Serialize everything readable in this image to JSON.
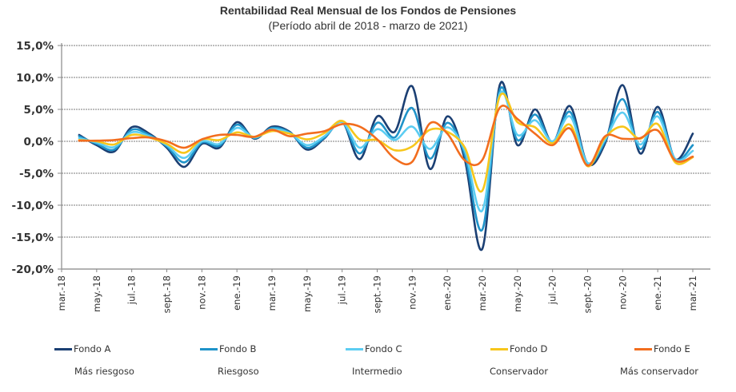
{
  "chart_data": {
    "type": "line",
    "title": "Rentabilidad Real Mensual de los Fondos de Pensiones",
    "subtitle": "(Período  abril de 2018 -  marzo de 2021)",
    "xlabel": "",
    "ylabel": "",
    "ylim": [
      -20,
      15
    ],
    "yticks": [
      15,
      10,
      5,
      0,
      -5,
      -10,
      -15,
      -20
    ],
    "ytick_labels": [
      "15,0%",
      "10,0%",
      "5,0%",
      "0,0%",
      "-5,0%",
      "-10,0%",
      "-15,0%",
      "-20,0%"
    ],
    "grid": true,
    "legend_position": "bottom",
    "xtick_labels": [
      "mar.-18",
      "may.-18",
      "jul.-18",
      "sept.-18",
      "nov.-18",
      "ene.-19",
      "mar.-19",
      "may.-19",
      "jul.-19",
      "sept.-19",
      "nov.-19",
      "ene.-20",
      "mar.-20",
      "may.-20",
      "jul.-20",
      "sept.-20",
      "nov.-20",
      "ene.-21",
      "mar.-21"
    ],
    "x_start_month_index": 1,
    "x_months_total": 36,
    "series": [
      {
        "name": "Fondo A",
        "description": "Más riesgoso",
        "color": "#1b3f73",
        "values": [
          1.0,
          -0.6,
          -1.6,
          2.2,
          1.2,
          -1.0,
          -4.0,
          -0.4,
          -1.0,
          3.0,
          0.4,
          2.3,
          1.5,
          -1.3,
          0.5,
          3.1,
          -2.8,
          3.9,
          1.5,
          8.6,
          -4.3,
          3.9,
          -2.9,
          -16.8,
          8.9,
          -0.6,
          5.0,
          -0.2,
          5.5,
          -3.5,
          -0.3,
          8.8,
          -1.9,
          5.4,
          -2.8,
          1.2
        ]
      },
      {
        "name": "Fondo B",
        "description": "Riesgoso",
        "color": "#1f93c9",
        "values": [
          0.8,
          -0.4,
          -1.3,
          1.8,
          1.0,
          -0.8,
          -3.3,
          -0.2,
          -0.7,
          2.6,
          0.5,
          2.1,
          1.4,
          -1.0,
          0.6,
          3.0,
          -1.9,
          2.9,
          0.6,
          5.2,
          -2.7,
          2.9,
          -2.2,
          -13.8,
          8.1,
          0.2,
          4.2,
          -0.1,
          4.6,
          -3.4,
          0.0,
          6.6,
          -1.2,
          4.6,
          -2.8,
          -0.6
        ]
      },
      {
        "name": "Fondo C",
        "description": "Intermedio",
        "color": "#5ccdf2",
        "values": [
          0.5,
          -0.2,
          -0.9,
          1.4,
          0.8,
          -0.6,
          -2.6,
          0.0,
          -0.4,
          2.1,
          0.6,
          1.9,
          1.3,
          -0.6,
          0.8,
          3.0,
          -1.0,
          1.9,
          0.2,
          2.3,
          -1.2,
          2.2,
          -1.5,
          -10.8,
          7.5,
          1.0,
          3.3,
          0.0,
          3.9,
          -3.4,
          0.3,
          4.5,
          -0.5,
          3.9,
          -2.8,
          -1.5
        ]
      },
      {
        "name": "Fondo D",
        "description": "Conservador",
        "color": "#f7c61b",
        "values": [
          0.2,
          0.0,
          -0.5,
          1.0,
          0.6,
          -0.4,
          -1.8,
          0.3,
          0.2,
          1.4,
          0.7,
          1.6,
          1.2,
          0.3,
          1.3,
          3.2,
          0.3,
          0.2,
          -1.4,
          -0.8,
          1.8,
          1.5,
          -1.0,
          -7.7,
          7.1,
          3.0,
          2.2,
          -0.3,
          2.6,
          -3.9,
          0.6,
          2.3,
          0.4,
          2.7,
          -3.3,
          -2.5
        ]
      },
      {
        "name": "Fondo E",
        "description": "Más conservador",
        "color": "#f26d1e",
        "values": [
          0.1,
          0.1,
          0.2,
          0.5,
          0.6,
          0.0,
          -1.0,
          0.3,
          1.0,
          1.0,
          0.7,
          1.8,
          0.8,
          1.2,
          1.6,
          2.7,
          2.3,
          0.3,
          -2.7,
          -3.2,
          2.8,
          1.2,
          -3.0,
          -2.9,
          5.3,
          3.5,
          1.2,
          -0.6,
          2.0,
          -3.8,
          0.8,
          0.4,
          0.5,
          1.7,
          -3.0,
          -2.4
        ]
      }
    ]
  }
}
